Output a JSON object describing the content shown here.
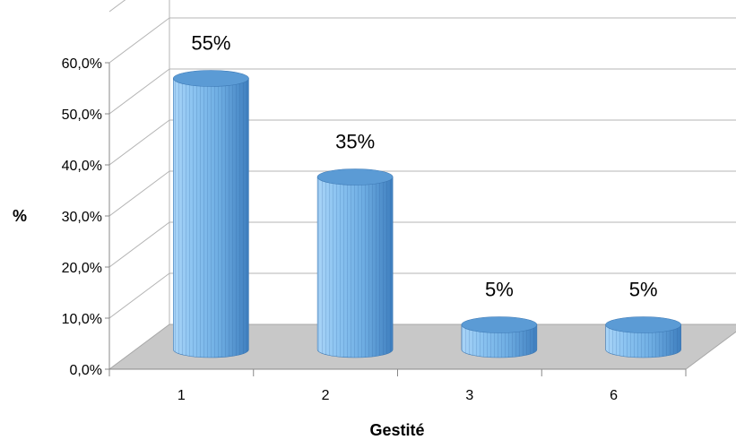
{
  "chart_data": {
    "type": "bar",
    "style": "3d-cylinder",
    "categories": [
      "1",
      "2",
      "3",
      "6"
    ],
    "values": [
      55,
      35,
      5,
      5
    ],
    "data_labels": [
      "55%",
      "35%",
      "5%",
      "5%"
    ],
    "xlabel": "Gestité",
    "ylabel": "%",
    "ylim": [
      0,
      60
    ],
    "yticks": [
      "0,0%",
      "10,0%",
      "20,0%",
      "30,0%",
      "40,0%",
      "50,0%",
      "60,0%"
    ],
    "grid": true,
    "legend": "none",
    "colors": {
      "bar_fill": "#7db9e8",
      "bar_top": "#5b9bd5",
      "bar_dark": "#3c78b4",
      "floor": "#c8c8c8",
      "grid": "#b4b4b4"
    }
  }
}
